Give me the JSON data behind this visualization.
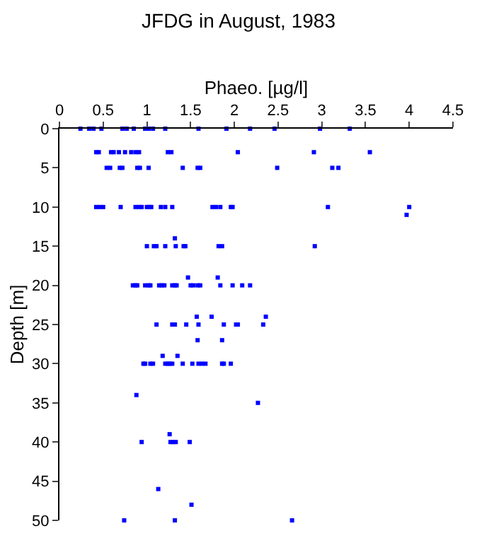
{
  "chart_data": {
    "type": "scatter",
    "title": "JFDG in August, 1983",
    "xlabel": "Phaeo. [µg/l]",
    "ylabel": "Depth [m]",
    "xlim": [
      0,
      4.5
    ],
    "xticks": [
      0,
      0.5,
      1,
      1.5,
      2,
      2.5,
      3,
      3.5,
      4,
      4.5
    ],
    "ylim": [
      50,
      0
    ],
    "yticks": [
      0,
      5,
      10,
      15,
      20,
      25,
      30,
      35,
      40,
      45,
      50
    ],
    "marker": "square",
    "series": [
      {
        "color": "#0000ff",
        "x": [
          0.24,
          0.34,
          0.39,
          0.48,
          0.72,
          0.77,
          0.85,
          0.98,
          1.02,
          1.07,
          1.21,
          1.59,
          1.91,
          2.18,
          2.46,
          2.98,
          3.32,
          0.42,
          0.45,
          0.59,
          0.62,
          0.68,
          0.75,
          0.82,
          0.87,
          0.91,
          1.24,
          1.28,
          2.04,
          2.91,
          3.55,
          0.54,
          0.58,
          0.69,
          0.72,
          0.89,
          0.92,
          1.02,
          1.41,
          1.58,
          1.61,
          2.49,
          3.12,
          3.19,
          0.42,
          0.46,
          0.5,
          0.7,
          0.87,
          0.91,
          0.94,
          1.0,
          1.03,
          1.05,
          1.16,
          1.21,
          1.29,
          1.75,
          1.79,
          1.84,
          1.96,
          1.98,
          3.07,
          4.0,
          3.97,
          1.32,
          1.0,
          1.08,
          1.11,
          1.21,
          1.33,
          1.42,
          1.44,
          1.82,
          1.86,
          2.92,
          1.47,
          1.81,
          0.84,
          0.87,
          0.89,
          0.98,
          1.02,
          1.04,
          1.14,
          1.17,
          1.2,
          1.29,
          1.32,
          1.34,
          1.5,
          1.53,
          1.58,
          1.61,
          1.84,
          1.98,
          2.09,
          2.18,
          1.57,
          1.74,
          2.36,
          1.11,
          1.29,
          1.32,
          1.45,
          1.59,
          1.88,
          2.02,
          2.04,
          2.33,
          1.58,
          1.86,
          1.18,
          1.35,
          0.96,
          0.98,
          1.04,
          1.07,
          1.21,
          1.24,
          1.26,
          1.29,
          1.41,
          1.52,
          1.59,
          1.63,
          1.67,
          1.86,
          1.88,
          1.96,
          0.88,
          2.27,
          1.26,
          0.94,
          1.27,
          1.3,
          1.33,
          1.49,
          1.13,
          1.51,
          0.74,
          1.32,
          2.66
        ],
        "values": [
          0,
          0,
          0,
          0,
          0,
          0,
          0,
          0,
          0,
          0,
          0,
          0,
          0,
          0,
          0,
          0,
          0,
          3,
          3,
          3,
          3,
          3,
          3,
          3,
          3,
          3,
          3,
          3,
          3,
          3,
          3,
          5,
          5,
          5,
          5,
          5,
          5,
          5,
          5,
          5,
          5,
          5,
          5,
          5,
          10,
          10,
          10,
          10,
          10,
          10,
          10,
          10,
          10,
          10,
          10,
          10,
          10,
          10,
          10,
          10,
          10,
          10,
          10,
          10,
          11,
          14,
          15,
          15,
          15,
          15,
          15,
          15,
          15,
          15,
          15,
          15,
          19,
          19,
          20,
          20,
          20,
          20,
          20,
          20,
          20,
          20,
          20,
          20,
          20,
          20,
          20,
          20,
          20,
          20,
          20,
          20,
          20,
          20,
          24,
          24,
          24,
          25,
          25,
          25,
          25,
          25,
          25,
          25,
          25,
          25,
          27,
          27,
          29,
          29,
          30,
          30,
          30,
          30,
          30,
          30,
          30,
          30,
          30,
          30,
          30,
          30,
          30,
          30,
          30,
          30,
          34,
          35,
          39,
          40,
          40,
          40,
          40,
          40,
          46,
          48,
          50,
          50,
          50
        ]
      }
    ]
  }
}
